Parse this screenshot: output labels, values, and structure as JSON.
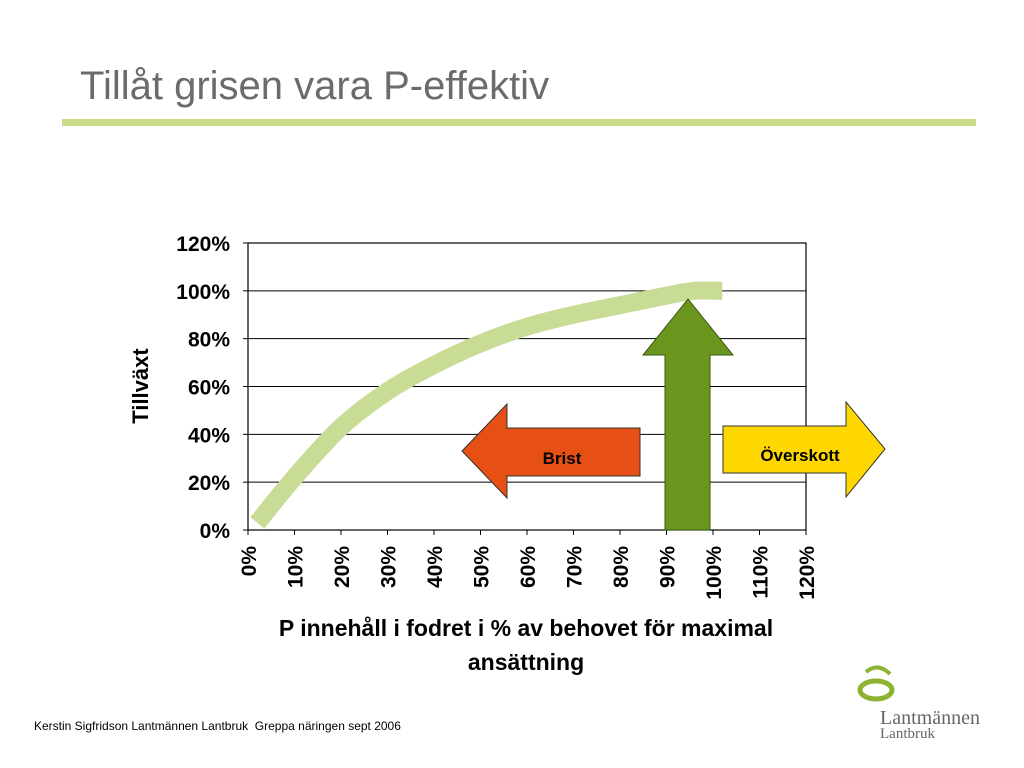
{
  "slide": {
    "title": "Tillåt grisen vara P-effektiv",
    "footer": "Kerstin Sigfridson Lantmännen Lantbruk  Greppa näringen sept 2006"
  },
  "logo": {
    "name": "Lantmännen",
    "sub": "Lantbruk",
    "icon": "lantmannen-swirl-icon",
    "color": "#8cb432"
  },
  "colors": {
    "title": "#6b6b6b",
    "title_rule": "#c8dc8c",
    "curve": "#c8dc96",
    "brist_arrow": "#e65014",
    "overskott_arrow": "#ffd700",
    "up_arrow": "#6b961e"
  },
  "chart_data": {
    "type": "line",
    "xlabel": "P innehåll i fodret i % av behovet för maximal ansättning",
    "ylabel": "Tillväxt",
    "xlim": [
      0,
      120
    ],
    "ylim": [
      0,
      120
    ],
    "x_ticks": [
      "0%",
      "10%",
      "20%",
      "30%",
      "40%",
      "50%",
      "60%",
      "70%",
      "80%",
      "90%",
      "100%",
      "110%",
      "120%"
    ],
    "y_ticks": [
      "0%",
      "20%",
      "40%",
      "60%",
      "80%",
      "100%",
      "120%"
    ],
    "grid": true,
    "series": [
      {
        "x": [
          2,
          10,
          20,
          30,
          40,
          50,
          60,
          70,
          80,
          90,
          96,
          102
        ],
        "values": [
          3,
          22,
          43,
          58,
          69,
          78,
          85,
          90,
          94,
          98,
          100,
          100
        ]
      }
    ],
    "annotations": [
      {
        "label": "Brist",
        "direction": "left"
      },
      {
        "label": "Överskott",
        "direction": "right"
      },
      {
        "label": "",
        "direction": "up"
      }
    ]
  }
}
